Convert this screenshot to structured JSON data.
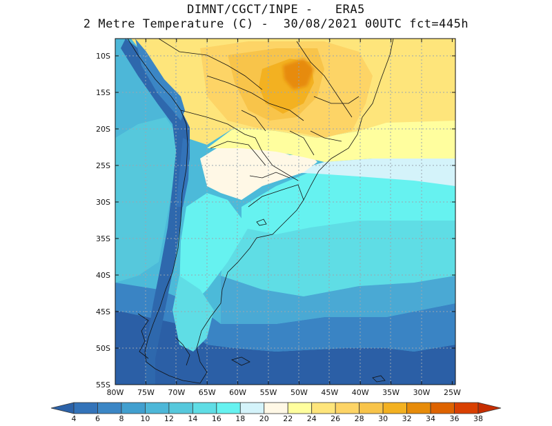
{
  "title_line1": "DIMNT/CGCT/INPE -   ERA5",
  "title_line2": "2 Metre Temperature (C) -  30/08/2021 00UTC fct=445h",
  "map": {
    "lat_ticks": [
      "10S",
      "15S",
      "20S",
      "25S",
      "30S",
      "35S",
      "40S",
      "45S",
      "50S",
      "55S"
    ],
    "lon_ticks": [
      "80W",
      "75W",
      "70W",
      "65W",
      "60W",
      "55W",
      "50W",
      "45W",
      "40W",
      "35W",
      "30W",
      "25W"
    ]
  },
  "colorbar": {
    "labels": [
      "4",
      "6",
      "8",
      "10",
      "12",
      "14",
      "16",
      "18",
      "20",
      "22",
      "24",
      "26",
      "28",
      "30",
      "32",
      "34",
      "36",
      "38"
    ],
    "colors": [
      "#2c62a8",
      "#3373b9",
      "#3b86c5",
      "#419fcf",
      "#4db7d8",
      "#56c8dc",
      "#5fdde5",
      "#66f2f0",
      "#d4f3fa",
      "#fff8e6",
      "#fffe9e",
      "#fee57b",
      "#fdd466",
      "#f8c44a",
      "#f3b121",
      "#e78b09",
      "#de6300",
      "#d94001",
      "#c62d00"
    ]
  }
}
